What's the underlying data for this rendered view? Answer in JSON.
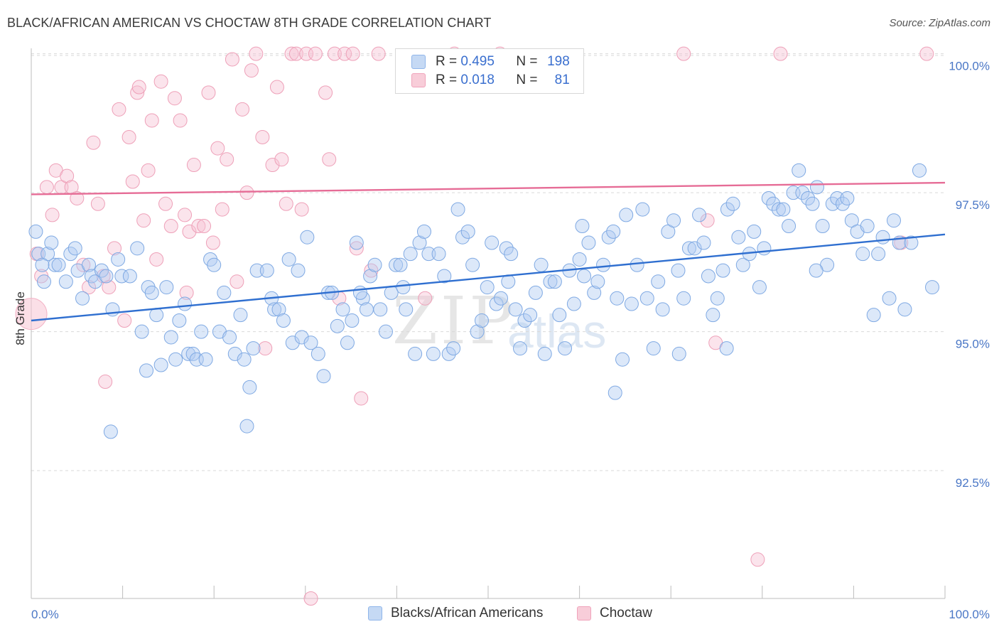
{
  "title": "BLACK/AFRICAN AMERICAN VS CHOCTAW 8TH GRADE CORRELATION CHART",
  "source": "Source: ZipAtlas.com",
  "watermark": {
    "zip": "ZIP",
    "atlas": "atlas"
  },
  "legend_top": [
    {
      "r_label": "R =",
      "r_value": "0.495",
      "n_label": "N =",
      "n_value": "198",
      "color": "#8fb5ea",
      "fill": "#c5d9f4"
    },
    {
      "r_label": "R =",
      "r_value": "0.018",
      "n_label": "N =",
      "n_value": "81",
      "color": "#f0a3bb",
      "fill": "#f8cdd9"
    }
  ],
  "legend_bottom": [
    {
      "label": "Blacks/African Americans",
      "color": "#8fb5ea",
      "fill": "#c5d9f4"
    },
    {
      "label": "Choctaw",
      "color": "#f0a3bb",
      "fill": "#f8cdd9"
    }
  ],
  "colors": {
    "blue_line": "#2f6fd0",
    "pink_line": "#e66c96",
    "tick_text": "#4a77c6"
  },
  "chart_data": {
    "type": "scatter",
    "title": "BLACK/AFRICAN AMERICAN VS CHOCTAW 8TH GRADE CORRELATION CHART",
    "xlabel": "",
    "ylabel": "8th Grade",
    "xlim": [
      0,
      100
    ],
    "ylim": [
      90.2,
      100.2
    ],
    "x_tick_labels": [
      "0.0%",
      "100.0%"
    ],
    "y_ticks": [
      {
        "value": 92.5,
        "label": "92.5%"
      },
      {
        "value": 95.0,
        "label": "95.0%"
      },
      {
        "value": 97.5,
        "label": "97.5%"
      },
      {
        "value": 100.0,
        "label": "100.0%"
      }
    ],
    "grid": "horizontal dashed",
    "series": [
      {
        "name": "Blacks/African Americans",
        "trend": {
          "x": [
            0,
            100
          ],
          "y": [
            95.2,
            96.75
          ]
        },
        "points": [
          [
            0.5,
            96.8
          ],
          [
            0.8,
            96.4
          ],
          [
            1.4,
            95.9
          ],
          [
            1.8,
            96.4
          ],
          [
            2.2,
            96.6
          ],
          [
            2.6,
            96.2
          ],
          [
            3.0,
            96.2
          ],
          [
            3.8,
            95.9
          ],
          [
            4.3,
            96.4
          ],
          [
            4.8,
            96.5
          ],
          [
            5.1,
            96.1
          ],
          [
            5.6,
            95.6
          ],
          [
            6.3,
            96.2
          ],
          [
            6.6,
            96.0
          ],
          [
            7.0,
            95.9
          ],
          [
            7.7,
            96.1
          ],
          [
            8.2,
            96.0
          ],
          [
            8.9,
            95.4
          ],
          [
            9.5,
            96.3
          ],
          [
            9.9,
            96.0
          ],
          [
            10.8,
            96.0
          ],
          [
            11.6,
            96.5
          ],
          [
            12.1,
            95.0
          ],
          [
            12.6,
            94.3
          ],
          [
            12.8,
            95.8
          ],
          [
            13.2,
            95.7
          ],
          [
            13.7,
            95.3
          ],
          [
            14.2,
            94.4
          ],
          [
            14.8,
            95.8
          ],
          [
            15.3,
            94.9
          ],
          [
            15.8,
            94.5
          ],
          [
            16.2,
            95.2
          ],
          [
            16.8,
            95.5
          ],
          [
            17.2,
            94.6
          ],
          [
            17.7,
            94.6
          ],
          [
            18.1,
            94.5
          ],
          [
            18.6,
            95.0
          ],
          [
            19.1,
            94.5
          ],
          [
            19.6,
            96.3
          ],
          [
            20.0,
            96.2
          ],
          [
            20.6,
            95.0
          ],
          [
            21.1,
            95.7
          ],
          [
            21.7,
            94.9
          ],
          [
            22.3,
            94.6
          ],
          [
            22.9,
            95.3
          ],
          [
            23.3,
            94.5
          ],
          [
            23.9,
            94.0
          ],
          [
            24.3,
            94.7
          ],
          [
            24.7,
            96.1
          ],
          [
            25.8,
            96.1
          ],
          [
            26.3,
            95.6
          ],
          [
            26.6,
            95.4
          ],
          [
            27.1,
            95.4
          ],
          [
            27.6,
            95.2
          ],
          [
            28.2,
            96.3
          ],
          [
            28.6,
            94.8
          ],
          [
            29.2,
            96.1
          ],
          [
            29.6,
            94.9
          ],
          [
            30.2,
            96.7
          ],
          [
            30.6,
            94.8
          ],
          [
            31.4,
            94.6
          ],
          [
            32.0,
            94.2
          ],
          [
            32.5,
            95.7
          ],
          [
            32.9,
            95.7
          ],
          [
            33.5,
            95.1
          ],
          [
            34.1,
            95.4
          ],
          [
            34.6,
            94.8
          ],
          [
            35.1,
            95.2
          ],
          [
            35.6,
            96.6
          ],
          [
            36.3,
            95.6
          ],
          [
            36.7,
            95.4
          ],
          [
            37.1,
            96.0
          ],
          [
            37.6,
            96.2
          ],
          [
            38.2,
            95.4
          ],
          [
            38.8,
            95.0
          ],
          [
            39.4,
            95.7
          ],
          [
            39.9,
            96.2
          ],
          [
            40.4,
            96.2
          ],
          [
            41.0,
            95.4
          ],
          [
            41.5,
            96.4
          ],
          [
            42.0,
            94.6
          ],
          [
            42.5,
            96.6
          ],
          [
            43.0,
            96.8
          ],
          [
            43.5,
            96.4
          ],
          [
            44.0,
            94.6
          ],
          [
            44.6,
            96.4
          ],
          [
            45.2,
            96.0
          ],
          [
            45.7,
            94.6
          ],
          [
            46.2,
            94.7
          ],
          [
            46.7,
            97.2
          ],
          [
            47.2,
            96.7
          ],
          [
            47.8,
            96.8
          ],
          [
            48.3,
            96.2
          ],
          [
            48.8,
            95.0
          ],
          [
            49.3,
            95.2
          ],
          [
            49.9,
            95.8
          ],
          [
            50.4,
            96.6
          ],
          [
            50.9,
            95.5
          ],
          [
            51.4,
            95.6
          ],
          [
            52.0,
            96.5
          ],
          [
            52.5,
            96.4
          ],
          [
            53.0,
            95.4
          ],
          [
            53.5,
            94.7
          ],
          [
            54.0,
            95.2
          ],
          [
            54.6,
            95.3
          ],
          [
            55.2,
            95.7
          ],
          [
            55.8,
            96.2
          ],
          [
            56.2,
            94.6
          ],
          [
            56.8,
            95.9
          ],
          [
            57.3,
            95.9
          ],
          [
            57.8,
            95.3
          ],
          [
            58.4,
            94.7
          ],
          [
            58.9,
            96.1
          ],
          [
            59.4,
            95.5
          ],
          [
            60.0,
            96.3
          ],
          [
            60.5,
            96.0
          ],
          [
            61.0,
            96.6
          ],
          [
            61.6,
            95.7
          ],
          [
            62.0,
            95.9
          ],
          [
            62.6,
            96.2
          ],
          [
            63.2,
            96.7
          ],
          [
            63.7,
            96.8
          ],
          [
            64.1,
            95.6
          ],
          [
            64.7,
            94.5
          ],
          [
            65.1,
            97.1
          ],
          [
            65.7,
            95.5
          ],
          [
            66.3,
            96.2
          ],
          [
            66.9,
            97.2
          ],
          [
            67.4,
            95.6
          ],
          [
            68.1,
            94.7
          ],
          [
            68.6,
            95.9
          ],
          [
            69.1,
            95.4
          ],
          [
            69.7,
            96.8
          ],
          [
            70.3,
            97.0
          ],
          [
            70.8,
            96.1
          ],
          [
            71.4,
            95.6
          ],
          [
            72.0,
            96.5
          ],
          [
            72.6,
            96.5
          ],
          [
            73.1,
            97.1
          ],
          [
            73.6,
            96.6
          ],
          [
            74.1,
            96.0
          ],
          [
            74.6,
            95.3
          ],
          [
            75.1,
            95.6
          ],
          [
            75.7,
            96.1
          ],
          [
            76.2,
            97.2
          ],
          [
            76.8,
            97.3
          ],
          [
            77.4,
            96.7
          ],
          [
            77.9,
            96.2
          ],
          [
            78.6,
            96.4
          ],
          [
            79.1,
            96.8
          ],
          [
            79.7,
            95.8
          ],
          [
            80.2,
            96.5
          ],
          [
            80.7,
            97.4
          ],
          [
            81.2,
            97.3
          ],
          [
            81.8,
            97.2
          ],
          [
            82.3,
            97.2
          ],
          [
            82.9,
            96.9
          ],
          [
            83.4,
            97.5
          ],
          [
            84.0,
            97.9
          ],
          [
            84.4,
            97.5
          ],
          [
            85.0,
            97.4
          ],
          [
            85.5,
            97.3
          ],
          [
            86.0,
            97.6
          ],
          [
            86.6,
            96.9
          ],
          [
            87.1,
            96.2
          ],
          [
            87.7,
            97.3
          ],
          [
            88.2,
            97.4
          ],
          [
            88.8,
            97.3
          ],
          [
            89.3,
            97.4
          ],
          [
            89.8,
            97.0
          ],
          [
            90.4,
            96.8
          ],
          [
            91.0,
            96.4
          ],
          [
            91.5,
            96.9
          ],
          [
            92.2,
            95.3
          ],
          [
            92.7,
            96.4
          ],
          [
            93.2,
            96.7
          ],
          [
            93.9,
            95.6
          ],
          [
            94.4,
            97.0
          ],
          [
            95.0,
            96.6
          ],
          [
            95.6,
            95.4
          ],
          [
            96.3,
            96.6
          ],
          [
            97.2,
            97.9
          ],
          [
            98.6,
            95.8
          ],
          [
            1.2,
            96.2
          ],
          [
            8.7,
            93.2
          ],
          [
            23.6,
            93.3
          ],
          [
            63.9,
            93.9
          ],
          [
            40.7,
            95.8
          ],
          [
            36.0,
            95.7
          ],
          [
            60.3,
            96.9
          ],
          [
            76.1,
            94.7
          ],
          [
            85.9,
            96.1
          ],
          [
            70.9,
            94.6
          ],
          [
            52.2,
            95.9
          ]
        ]
      },
      {
        "name": "Choctaw",
        "trend": {
          "x": [
            0,
            100
          ],
          "y": [
            97.47,
            97.68
          ]
        },
        "points": [
          [
            0.6,
            96.4
          ],
          [
            1.1,
            96.0
          ],
          [
            1.7,
            97.6
          ],
          [
            2.3,
            97.1
          ],
          [
            2.7,
            97.9
          ],
          [
            3.3,
            97.6
          ],
          [
            3.9,
            97.8
          ],
          [
            4.4,
            97.6
          ],
          [
            5.0,
            97.4
          ],
          [
            5.7,
            96.2
          ],
          [
            6.3,
            95.8
          ],
          [
            6.8,
            98.4
          ],
          [
            7.3,
            97.3
          ],
          [
            7.9,
            96.0
          ],
          [
            8.5,
            95.8
          ],
          [
            9.1,
            96.5
          ],
          [
            9.6,
            99.0
          ],
          [
            10.2,
            95.2
          ],
          [
            10.7,
            98.5
          ],
          [
            11.1,
            97.7
          ],
          [
            11.6,
            99.3
          ],
          [
            12.3,
            97.0
          ],
          [
            12.8,
            97.9
          ],
          [
            13.2,
            98.8
          ],
          [
            13.7,
            96.3
          ],
          [
            14.2,
            99.5
          ],
          [
            14.7,
            97.3
          ],
          [
            15.3,
            96.9
          ],
          [
            15.7,
            99.2
          ],
          [
            16.3,
            98.8
          ],
          [
            16.8,
            97.1
          ],
          [
            17.3,
            96.8
          ],
          [
            17.8,
            98.0
          ],
          [
            18.3,
            96.9
          ],
          [
            18.9,
            96.9
          ],
          [
            19.4,
            99.3
          ],
          [
            19.9,
            96.6
          ],
          [
            20.4,
            98.3
          ],
          [
            20.9,
            97.2
          ],
          [
            21.4,
            98.1
          ],
          [
            22.0,
            99.9
          ],
          [
            22.5,
            95.9
          ],
          [
            23.1,
            99.0
          ],
          [
            23.6,
            97.5
          ],
          [
            24.1,
            99.7
          ],
          [
            24.6,
            100.0
          ],
          [
            25.3,
            98.5
          ],
          [
            26.4,
            98.0
          ],
          [
            26.9,
            99.4
          ],
          [
            27.4,
            98.1
          ],
          [
            27.9,
            97.3
          ],
          [
            28.5,
            100.0
          ],
          [
            29.0,
            100.0
          ],
          [
            29.6,
            97.2
          ],
          [
            30.1,
            100.0
          ],
          [
            30.6,
            90.2
          ],
          [
            31.1,
            100.0
          ],
          [
            32.2,
            99.3
          ],
          [
            32.6,
            98.1
          ],
          [
            33.2,
            100.0
          ],
          [
            33.7,
            95.6
          ],
          [
            34.3,
            100.0
          ],
          [
            35.2,
            100.0
          ],
          [
            35.6,
            96.5
          ],
          [
            36.1,
            93.8
          ],
          [
            37.2,
            96.1
          ],
          [
            38.0,
            100.0
          ],
          [
            43.1,
            95.6
          ],
          [
            46.3,
            100.0
          ],
          [
            51.3,
            100.0
          ],
          [
            71.4,
            100.0
          ],
          [
            74.0,
            97.0
          ],
          [
            74.9,
            94.8
          ],
          [
            79.5,
            90.9
          ],
          [
            82.0,
            100.0
          ],
          [
            95.2,
            96.6
          ],
          [
            98.0,
            100.0
          ],
          [
            11.8,
            99.4
          ],
          [
            17.0,
            95.7
          ],
          [
            8.1,
            94.1
          ],
          [
            25.6,
            94.7
          ]
        ]
      }
    ]
  }
}
